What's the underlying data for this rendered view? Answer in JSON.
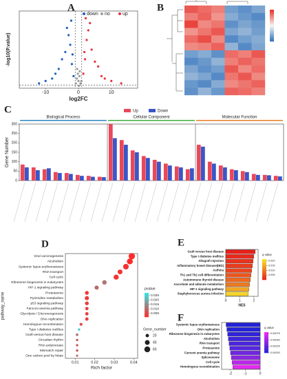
{
  "chart_data": [
    {
      "panel": "A",
      "type": "scatter",
      "xlabel": "log2FC",
      "ylabel": "-log10(P.value)",
      "xlim": [
        -18,
        18
      ],
      "xticks": [
        -10,
        0,
        10
      ],
      "ylim": [
        0,
        32
      ],
      "vlines": [
        -1,
        1
      ],
      "hline": 1.3,
      "series": [
        {
          "name": "down",
          "color": "#1f5fbf",
          "x": [
            -1.5,
            -2,
            -2.5,
            -3,
            -4,
            -5,
            -6,
            -7,
            -8,
            -10,
            -12,
            -3.5,
            -2.2,
            -1.8
          ],
          "y": [
            5,
            10,
            18,
            22,
            15,
            12,
            8,
            6,
            4,
            3,
            2,
            25,
            28,
            14
          ]
        },
        {
          "name": "no",
          "color": "#9a9a9a",
          "x": [
            -0.8,
            -0.5,
            -0.2,
            0,
            0.3,
            0.6,
            0.9,
            -0.4,
            0.4,
            0.1
          ],
          "y": [
            2,
            4,
            6,
            3,
            5,
            2,
            3,
            8,
            7,
            1
          ]
        },
        {
          "name": "up",
          "color": "#e8303a",
          "x": [
            1.5,
            2,
            2.5,
            3,
            4,
            5,
            6,
            7,
            8,
            10,
            13,
            3.5,
            2.2,
            1.8
          ],
          "y": [
            6,
            12,
            20,
            24,
            16,
            11,
            9,
            5,
            4,
            3,
            2,
            27,
            29,
            15
          ]
        }
      ]
    },
    {
      "panel": "B",
      "type": "heatmap",
      "colors": [
        "#2c6fbb",
        "#f7f7f0",
        "#e8302a"
      ],
      "zlim": [
        -2,
        2
      ],
      "values": [
        [
          1.6,
          1.4,
          1.2,
          -1.3,
          -1.5,
          -1.2
        ],
        [
          1.2,
          1.5,
          1.0,
          -1.1,
          -1.4,
          -1.6
        ],
        [
          1.8,
          1.1,
          1.3,
          -1.5,
          -1.2,
          -1.4
        ],
        [
          1.0,
          1.3,
          1.6,
          -1.2,
          -1.0,
          -1.3
        ],
        [
          1.4,
          1.7,
          1.1,
          -1.6,
          -1.3,
          -1.1
        ],
        [
          1.1,
          1.2,
          1.5,
          -1.0,
          -1.6,
          -1.2
        ],
        [
          -1.3,
          -1.1,
          -1.5,
          1.4,
          1.2,
          1.6
        ],
        [
          -1.6,
          -1.4,
          -1.0,
          1.2,
          1.5,
          1.3
        ],
        [
          -1.2,
          -1.5,
          -1.3,
          1.6,
          1.1,
          1.4
        ],
        [
          -1.0,
          -1.2,
          -1.6,
          1.3,
          1.6,
          1.1
        ],
        [
          -1.4,
          -1.6,
          -1.1,
          1.1,
          1.3,
          1.5
        ],
        [
          -1.5,
          -1.0,
          -1.4,
          1.5,
          1.4,
          1.2
        ]
      ]
    },
    {
      "panel": "C",
      "type": "groupbar",
      "ylabel": "Gene Number",
      "ylim": [
        0,
        300
      ],
      "yticks": [
        0,
        50,
        100,
        150,
        200,
        250,
        300
      ],
      "categories": [
        null,
        null,
        null,
        null,
        null,
        null,
        null,
        null,
        null,
        null,
        null,
        null,
        null,
        null,
        null,
        null,
        null,
        null,
        null,
        null,
        null,
        null,
        null,
        null
      ],
      "groups": [
        {
          "name": "Biological Process",
          "color": "#2e86c1",
          "size": 8
        },
        {
          "name": "Cellular Component",
          "color": "#3cae3c",
          "size": 8
        },
        {
          "name": "Molecular Function",
          "color": "#e67e22",
          "size": 8
        }
      ],
      "series": [
        {
          "name": "Up",
          "color": "#e8485a",
          "values": [
            85,
            70,
            60,
            45,
            40,
            30,
            25,
            20,
            300,
            215,
            160,
            130,
            110,
            90,
            75,
            60,
            190,
            100,
            80,
            60,
            50,
            35,
            30,
            25
          ]
        },
        {
          "name": "Down",
          "color": "#3a56c8",
          "values": [
            70,
            55,
            65,
            40,
            35,
            25,
            20,
            18,
            225,
            190,
            150,
            120,
            100,
            80,
            70,
            65,
            180,
            90,
            70,
            55,
            45,
            30,
            28,
            22
          ]
        }
      ]
    },
    {
      "panel": "D",
      "type": "dot",
      "xlabel": "Rich factor",
      "ylabel": "pathway_name",
      "xlim": [
        0.005,
        0.042
      ],
      "xticks": [
        0.01,
        0.02,
        0.03,
        0.04
      ],
      "categories": [
        "Viral carcinogenesis",
        "Alcoholism",
        "Systemic lupus erythematosus",
        "RNA transport",
        "Cell cycle",
        "Ribosome biogenesis in eukaryotes",
        "HIF-1 signaling pathway",
        "Proteasome",
        "Pyrimidine metabolism",
        "p53 signaling pathway",
        "Fanconi anemia pathway",
        "Glycolysis / Gluconeogenesis",
        "DNA replication",
        "Homologous recombination",
        "Type I diabetes mellitus",
        "Graft-versus-host disease",
        "Circadian rhythm",
        "RNA polymerase",
        "Mismatch repair",
        "One carbon pool by folate"
      ],
      "values": [
        0.039,
        0.038,
        0.036,
        0.033,
        0.031,
        0.025,
        0.021,
        0.016,
        0.016,
        0.016,
        0.016,
        0.016,
        0.016,
        0.013,
        0.012,
        0.011,
        0.011,
        0.011,
        0.011,
        0.011
      ],
      "sizes": [
        70,
        60,
        55,
        40,
        45,
        35,
        30,
        25,
        30,
        25,
        20,
        20,
        20,
        15,
        10,
        12,
        10,
        10,
        10,
        8
      ],
      "pvalues": [
        0.001,
        0.001,
        0.002,
        0.002,
        0.002,
        0.012,
        0.01,
        0.003,
        0.003,
        0.004,
        0.004,
        0.004,
        0.004,
        0.006,
        0.025,
        0.012,
        0.008,
        0.008,
        0.008,
        0.01
      ],
      "color_title": "pvalue",
      "colors": [
        "#ff2a2a",
        "#33e6e6"
      ],
      "clim": [
        0.001,
        0.028
      ],
      "cticks": [
        {
          "value": 0.025,
          "label": "0.025"
        },
        {
          "value": 0.02,
          "label": "0.020"
        },
        0.015,
        {
          "value": 0.01,
          "label": "0.010"
        },
        0.005
      ],
      "size_title": "Gene_number",
      "size_ticks": [
        20,
        40,
        60
      ]
    },
    {
      "panel": "E",
      "type": "hbar",
      "xlabel": "NES",
      "xlim": [
        0,
        2.3
      ],
      "xticks": [
        0,
        1,
        2
      ],
      "categories": [
        "Graft versus host disease",
        "Type I diabetes mellitus",
        "Allograft rejection",
        "Inflammatory bowel disease(IBD)",
        "Asthma",
        "Th1 and Th2 cell differentiation",
        "Autoimmune thyroid disease",
        "Ascorbate and aldarate metabolism",
        "HIF-1 signaling pathway",
        "Staphylococcus aureus infection"
      ],
      "values": [
        2.1,
        2.0,
        1.95,
        1.9,
        1.85,
        1.8,
        1.75,
        1.7,
        1.65,
        1.6
      ],
      "qvalues": [
        0,
        0.001,
        0.002,
        0.003,
        0.004,
        0.006,
        0.008,
        0.01,
        0.015,
        0.02
      ],
      "color_title": "q value",
      "colors": [
        "#e8201a",
        "#f5e62a"
      ],
      "clim": [
        0,
        0.022
      ],
      "cticks": [
        0.005,
        {
          "value": 0.01,
          "label": "0.010"
        },
        0.015,
        {
          "value": 0.02,
          "label": "0.020"
        }
      ]
    },
    {
      "panel": "F",
      "type": "hbar",
      "xlim": [
        -2.6,
        0
      ],
      "xticks": [
        -2,
        -1,
        0
      ],
      "categories": [
        "Systemic lupus erythematosus",
        "DNA replication",
        "Ribosome biogenesis in eukaryotes",
        "Alcoholism",
        "RNA transport",
        "Proteasome",
        "Fanconi anemia pathway",
        "Spliceosome",
        "Cell cycle",
        "Homologous recombination"
      ],
      "values": [
        -2.3,
        -2.25,
        -2.2,
        -2.15,
        -2.1,
        -2.05,
        -2.0,
        -1.95,
        -1.9,
        -1.85
      ],
      "qvalues": [
        0,
        0,
        5e-05,
        0.0001,
        0.00015,
        0.0002,
        0.0003,
        0.0004,
        0.0006,
        0.00075
      ],
      "color_title": "q value",
      "colors": [
        "#2323d8",
        "#f02af0"
      ],
      "clim": [
        0,
        0.0008
      ],
      "cticks": [
        {
          "value": 0,
          "label": "0.00000"
        },
        {
          "value": 0.00025,
          "label": "0.00025"
        },
        {
          "value": 0.0005,
          "label": "0.00050"
        },
        {
          "value": 0.00075,
          "label": "0.00075"
        }
      ]
    }
  ]
}
